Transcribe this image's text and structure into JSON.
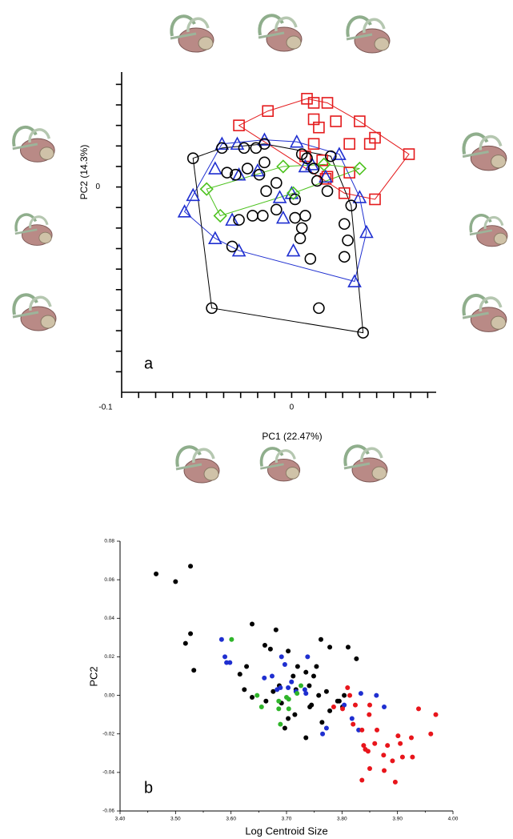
{
  "chart_data": [
    {
      "type": "scatter-hull",
      "panel": "a",
      "xlabel": "PC1 (22.47%)",
      "ylabel": "PC2 (14.3%)",
      "xlim": [
        -0.1,
        0.085
      ],
      "ylim": [
        -0.1,
        0.056
      ],
      "xticks": [
        -0.1,
        0
      ],
      "yticks": [
        0
      ],
      "xminorticks": [
        -0.09,
        -0.08,
        -0.07,
        -0.06,
        -0.05,
        -0.04,
        -0.03,
        -0.02,
        -0.01,
        0.01,
        0.02,
        0.03,
        0.04,
        0.05,
        0.06,
        0.07,
        0.08
      ],
      "yminorticks": [
        -0.09,
        -0.08,
        -0.07,
        -0.06,
        -0.05,
        -0.04,
        -0.03,
        -0.02,
        -0.01,
        0.01,
        0.02,
        0.03,
        0.04,
        0.05
      ],
      "series": [
        {
          "color": "#e41a1c",
          "marker": "square",
          "x": [
            -0.031,
            -0.014,
            0.009,
            0.013,
            0.021,
            0.013,
            0.016,
            0.026,
            0.034,
            0.04,
            0.046,
            0.049,
            0.069,
            0.049,
            0.02,
            0.034,
            0.031,
            0.013,
            0.018,
            0.021,
            0.008
          ],
          "y": [
            0.03,
            0.037,
            0.043,
            0.041,
            0.041,
            0.033,
            0.029,
            0.032,
            0.021,
            0.032,
            0.021,
            0.024,
            0.016,
            -0.006,
            0.004,
            0.007,
            -0.003,
            0.021,
            0.013,
            0.005,
            0.015
          ]
        },
        {
          "color": "#1f2fd0",
          "marker": "triangle",
          "x": [
            -0.041,
            -0.032,
            -0.016,
            0.003,
            0.028,
            0.04,
            0.037,
            0.044,
            0.02,
            0.008,
            0.0,
            -0.007,
            -0.005,
            0.001,
            -0.045,
            -0.058,
            -0.063,
            -0.031,
            -0.035,
            -0.045,
            -0.031,
            -0.02,
            0.012
          ],
          "y": [
            0.021,
            0.021,
            0.023,
            0.022,
            0.016,
            -0.005,
            -0.046,
            -0.022,
            0.005,
            0.01,
            -0.003,
            -0.005,
            -0.015,
            -0.031,
            -0.025,
            -0.004,
            -0.012,
            -0.031,
            -0.016,
            0.009,
            0.006,
            0.008,
            0.011
          ]
        },
        {
          "color": "#000000",
          "marker": "circle",
          "x": [
            -0.058,
            -0.047,
            0.042,
            0.016,
            -0.041,
            -0.028,
            -0.021,
            -0.016,
            0.006,
            0.009,
            0.023,
            0.013,
            0.015,
            0.021,
            0.035,
            0.031,
            0.031,
            0.033,
            0.011,
            0.005,
            0.008,
            0.002,
            0.006,
            0.002,
            -0.009,
            -0.015,
            -0.017,
            -0.023,
            -0.031,
            -0.035,
            -0.033,
            -0.038,
            -0.026,
            -0.019,
            -0.009,
            -0.016
          ],
          "y": [
            0.014,
            -0.059,
            -0.071,
            -0.059,
            0.019,
            0.019,
            0.019,
            0.021,
            0.016,
            0.014,
            0.015,
            0.009,
            0.003,
            -0.002,
            -0.009,
            -0.018,
            -0.034,
            -0.026,
            -0.035,
            -0.025,
            -0.014,
            -0.015,
            -0.02,
            -0.006,
            -0.011,
            -0.002,
            -0.014,
            -0.014,
            -0.016,
            -0.029,
            0.006,
            0.007,
            0.009,
            0.006,
            0.002,
            0.012
          ]
        },
        {
          "color": "#4cc21e",
          "marker": "diamond",
          "x": [
            0.04,
            -0.005,
            0.001,
            -0.042,
            -0.05,
            0.019
          ],
          "y": [
            0.009,
            0.01,
            -0.003,
            -0.014,
            -0.001,
            0.011
          ]
        }
      ]
    },
    {
      "type": "scatter",
      "panel": "b",
      "xlabel": "Log Centroid Size",
      "ylabel": "PC2",
      "xlim": [
        3.4,
        4.0
      ],
      "ylim": [
        -0.06,
        0.08
      ],
      "xticks": [
        {
          "value": 3.4,
          "label": "3.40"
        },
        {
          "value": 3.5,
          "label": "3.50"
        },
        {
          "value": 3.6,
          "label": "3.60"
        },
        {
          "value": 3.7,
          "label": "3.70"
        },
        {
          "value": 3.8,
          "label": "3.80"
        },
        {
          "value": 3.9,
          "label": "3.90"
        },
        {
          "value": 4.0,
          "label": "4.00"
        }
      ],
      "xminorticks": [
        3.45,
        3.55,
        3.65,
        3.75,
        3.85,
        3.95
      ],
      "yticks": [
        {
          "value": -0.06,
          "label": "-0.06"
        },
        {
          "value": -0.04,
          "label": "-0.04"
        },
        {
          "value": -0.02,
          "label": "-0.02"
        },
        {
          "value": 0,
          "label": "0.00"
        },
        {
          "value": 0.02,
          "label": "0.02"
        },
        {
          "value": 0.04,
          "label": "0.04"
        },
        {
          "value": 0.06,
          "label": "0.06"
        },
        {
          "value": 0.08,
          "label": "0.08"
        }
      ],
      "series": [
        {
          "color": "#000000",
          "x": [
            3.465,
            3.5,
            3.527,
            3.527,
            3.518,
            3.533,
            3.638,
            3.661,
            3.681,
            3.671,
            3.628,
            3.616,
            3.703,
            3.72,
            3.735,
            3.762,
            3.754,
            3.778,
            3.749,
            3.741,
            3.712,
            3.687,
            3.676,
            3.663,
            3.638,
            3.624,
            3.691,
            3.703,
            3.697,
            3.735,
            3.717,
            3.745,
            3.772,
            3.778,
            3.792,
            3.795,
            3.801,
            3.811,
            3.826,
            3.804,
            3.764,
            3.742,
            3.715,
            3.758
          ],
          "y": [
            0.063,
            0.059,
            0.067,
            0.032,
            0.027,
            0.013,
            0.037,
            0.026,
            0.034,
            0.024,
            0.015,
            0.011,
            0.023,
            0.015,
            0.012,
            0.029,
            0.015,
            0.025,
            0.01,
            0.005,
            0.01,
            0.005,
            0.002,
            -0.003,
            -0.001,
            0.003,
            -0.004,
            -0.012,
            -0.017,
            -0.022,
            0.003,
            -0.005,
            0.002,
            -0.008,
            -0.003,
            -0.003,
            -0.006,
            0.025,
            0.019,
            0.0,
            -0.014,
            -0.006,
            -0.01,
            0.0
          ]
        },
        {
          "color": "#1f2fd0",
          "x": [
            3.583,
            3.589,
            3.598,
            3.592,
            3.674,
            3.691,
            3.697,
            3.709,
            3.717,
            3.733,
            3.735,
            3.738,
            3.765,
            3.772,
            3.689,
            3.683,
            3.703,
            3.804,
            3.818,
            3.83,
            3.834,
            3.862,
            3.876,
            3.66
          ],
          "y": [
            0.029,
            0.02,
            0.017,
            0.017,
            0.01,
            0.02,
            0.016,
            0.007,
            0.002,
            0.003,
            0.001,
            0.02,
            -0.02,
            -0.017,
            0.004,
            0.003,
            0.004,
            -0.005,
            -0.012,
            -0.018,
            0.001,
            0.0,
            -0.006,
            0.009
          ]
        },
        {
          "color": "#2fb52a",
          "x": [
            3.601,
            3.647,
            3.655,
            3.689,
            3.704,
            3.686,
            3.7,
            3.704,
            3.719,
            3.726,
            3.686
          ],
          "y": [
            0.029,
            0.0,
            -0.006,
            -0.015,
            -0.007,
            -0.007,
            -0.001,
            -0.002,
            0.001,
            0.005,
            -0.003
          ]
        },
        {
          "color": "#e8151b",
          "x": [
            3.81,
            3.814,
            3.785,
            3.801,
            3.824,
            3.82,
            3.836,
            3.85,
            3.849,
            3.839,
            3.842,
            3.847,
            3.859,
            3.863,
            3.891,
            3.875,
            3.882,
            3.905,
            3.901,
            3.925,
            3.909,
            3.927,
            3.938,
            3.96,
            3.969,
            3.836,
            3.85,
            3.876,
            3.896
          ],
          "y": [
            0.004,
            0.0,
            -0.006,
            -0.007,
            -0.005,
            -0.015,
            -0.018,
            -0.005,
            -0.01,
            -0.026,
            -0.028,
            -0.029,
            -0.025,
            -0.018,
            -0.034,
            -0.031,
            -0.026,
            -0.025,
            -0.021,
            -0.022,
            -0.032,
            -0.032,
            -0.007,
            -0.02,
            -0.01,
            -0.044,
            -0.038,
            -0.039,
            -0.045
          ]
        }
      ]
    }
  ]
}
